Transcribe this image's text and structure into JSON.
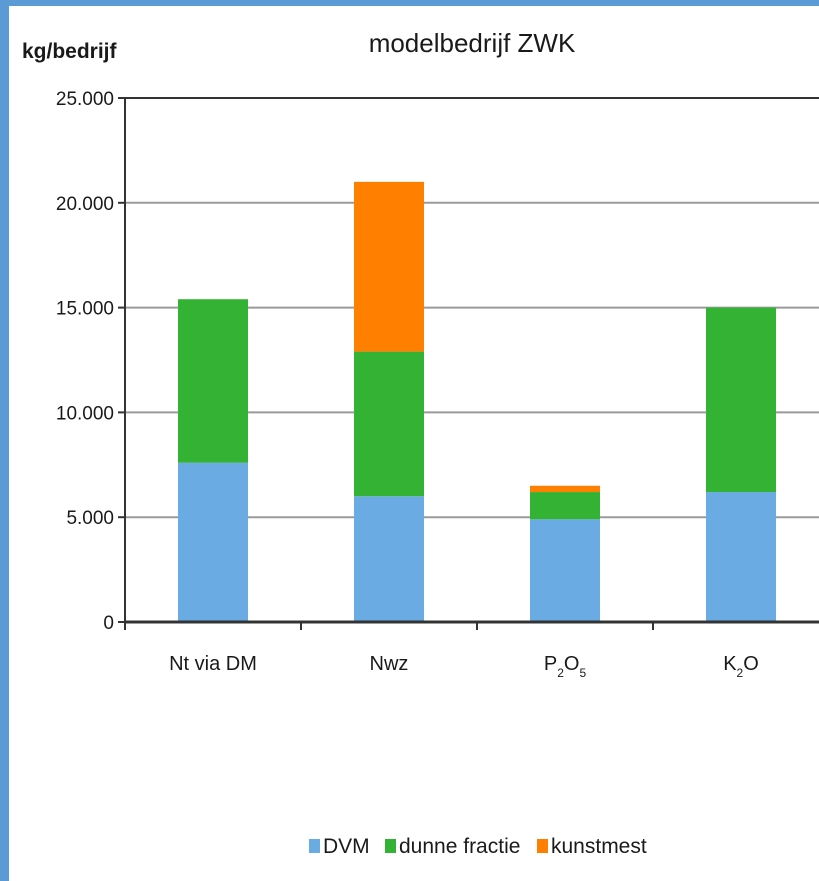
{
  "chart_data": {
    "type": "bar",
    "stacked": true,
    "title": "modelbedrijf ZWK",
    "ylabel": "kg/bedrijf",
    "xlabel": "",
    "ylim": [
      0,
      25000
    ],
    "yticks": [
      0,
      5000,
      10000,
      15000,
      20000,
      25000
    ],
    "ytick_labels": [
      "0",
      "5.000",
      "10.000",
      "15.000",
      "20.000",
      "25.000"
    ],
    "categories": [
      {
        "main": "Nt via DM"
      },
      {
        "main": "Nwz"
      },
      {
        "main": "P",
        "sub1": "2",
        "mid": "O",
        "sub2": "5"
      },
      {
        "main": "K",
        "sub1": "2",
        "mid": "O"
      }
    ],
    "series": [
      {
        "name": "DVM",
        "color": "#6aabe3",
        "values": [
          7600,
          6000,
          4900,
          6200
        ]
      },
      {
        "name": "dunne fractie",
        "color": "#33b233",
        "values": [
          7800,
          6900,
          1300,
          8800
        ]
      },
      {
        "name": "kunstmest",
        "color": "#ff7f00",
        "values": [
          0,
          8100,
          300,
          0
        ]
      }
    ],
    "grid": true,
    "legend_position": "bottom"
  }
}
